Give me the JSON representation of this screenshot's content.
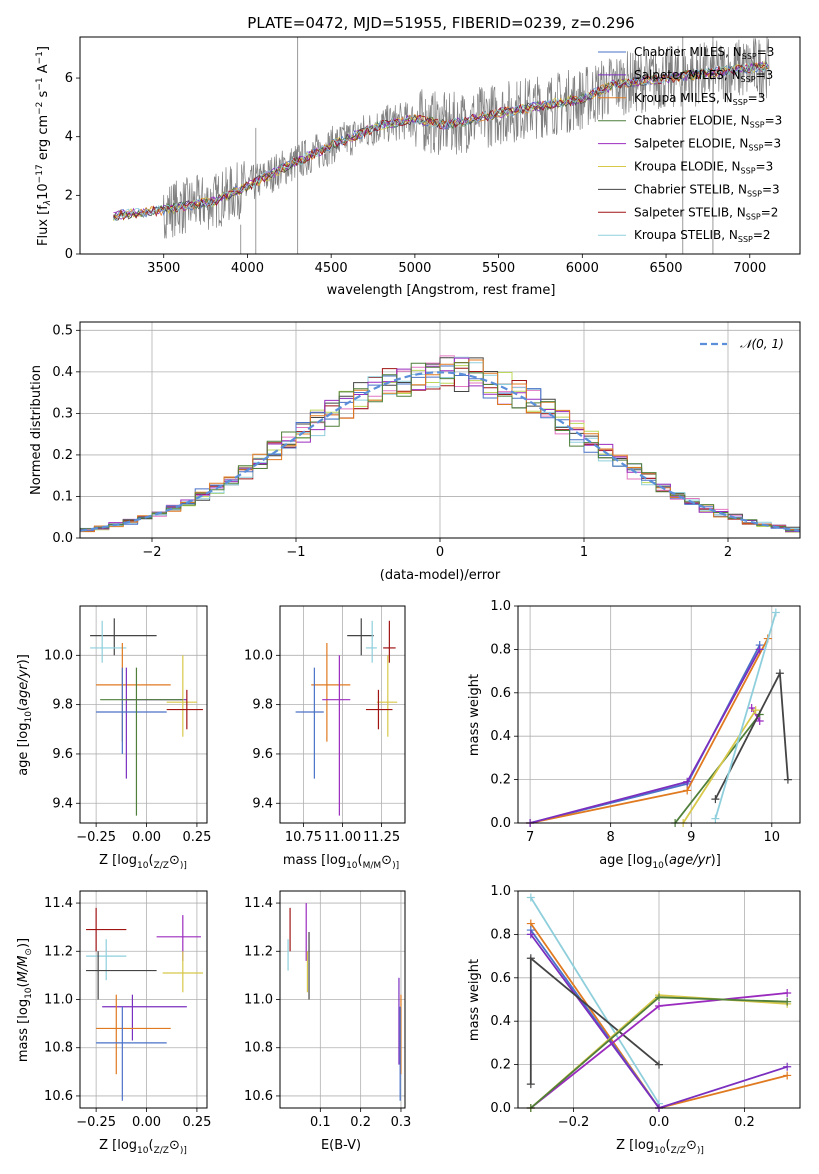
{
  "colors": [
    "#4a72c8",
    "#7b2fbf",
    "#e07a20",
    "#4f7f3a",
    "#9b2bbf",
    "#d8c84a",
    "#444444",
    "#a01414",
    "#8fcfdc"
  ],
  "chart_data": [
    {
      "type": "line",
      "title": "PLATE=0472, MJD=51955, FIBERID=0239, z=0.296",
      "xlabel": "wavelength [Angstrom, rest frame]",
      "ylabel_parts": [
        "Flux [f",
        "λ",
        "10",
        "−17",
        " erg cm",
        "−2",
        " s",
        "−1",
        " A",
        "−1",
        "]"
      ],
      "xlim": [
        3000,
        7300
      ],
      "ylim": [
        0,
        7.4
      ],
      "xticks": [
        3500,
        4000,
        4500,
        5000,
        5500,
        6000,
        6500,
        7000
      ],
      "yticks": [
        0,
        2,
        4,
        6
      ],
      "legend_placement": "right",
      "series": [
        {
          "name": "Chabrier MILES, N",
          "sub": "SSP",
          "suffix": "=3"
        },
        {
          "name": "Salpeter MILES, N",
          "sub": "SSP",
          "suffix": "=3"
        },
        {
          "name": "Kroupa MILES, N",
          "sub": "SSP",
          "suffix": "=3"
        },
        {
          "name": "Chabrier ELODIE, N",
          "sub": "SSP",
          "suffix": "=3"
        },
        {
          "name": "Salpeter ELODIE, N",
          "sub": "SSP",
          "suffix": "=3"
        },
        {
          "name": "Kroupa ELODIE, N",
          "sub": "SSP",
          "suffix": "=3"
        },
        {
          "name": "Chabrier STELIB, N",
          "sub": "SSP",
          "suffix": "=3"
        },
        {
          "name": "Salpeter STELIB, N",
          "sub": "SSP",
          "suffix": "=2"
        },
        {
          "name": "Kroupa STELIB, N",
          "sub": "SSP",
          "suffix": "=2"
        }
      ],
      "model_continuum": {
        "x": [
          3200,
          3500,
          3800,
          4000,
          4200,
          4500,
          4800,
          5000,
          5200,
          5500,
          5800,
          6000,
          6200,
          6500,
          6800,
          7100
        ],
        "y": [
          1.3,
          1.5,
          1.8,
          2.3,
          2.9,
          3.7,
          4.4,
          4.6,
          4.4,
          4.8,
          5.1,
          5.3,
          5.8,
          6.0,
          6.2,
          6.4
        ]
      }
    },
    {
      "type": "line",
      "xlabel": "(data-model)/error",
      "ylabel": "Normed distribution",
      "xlim": [
        -2.5,
        2.5
      ],
      "ylim": [
        0,
        0.52
      ],
      "xticks": [
        -2,
        -1,
        0,
        1,
        2
      ],
      "xticklabels": [
        "−2",
        "−1",
        "0",
        "1",
        "2"
      ],
      "yticks": [
        0,
        0.1,
        0.2,
        0.3,
        0.4,
        0.5
      ],
      "yticklabels": [
        "0.0",
        "0.1",
        "0.2",
        "0.3",
        "0.4",
        "0.5"
      ],
      "legend": "𝒩(0, 1)",
      "legend_placement": "top-right",
      "normal_curve": {
        "mu": 0,
        "sigma": 1
      }
    },
    {
      "type": "scatter",
      "xlabel_parts": [
        "Z [log",
        "10",
        "(",
        "Z/Z",
        "⊙",
        ")]"
      ],
      "ylabel_parts": [
        "age  [log",
        "10",
        "(",
        "age/yr",
        ")]"
      ],
      "xlim": [
        -0.33,
        0.3
      ],
      "ylim": [
        9.32,
        10.2
      ],
      "xticks": [
        -0.25,
        0,
        0.25
      ],
      "xticklabels": [
        "−0.25",
        "0.00",
        "0.25"
      ],
      "yticks": [
        9.4,
        9.6,
        9.8,
        10.0
      ],
      "yticklabels": [
        "9.4",
        "9.6",
        "9.8",
        "10.0"
      ],
      "points": [
        {
          "c": 6,
          "x": -0.16,
          "y": 10.08,
          "xe": [
            -0.28,
            0.05
          ],
          "ye": [
            10.0,
            10.15
          ]
        },
        {
          "c": 8,
          "x": -0.22,
          "y": 10.03,
          "xe": [
            -0.28,
            -0.1
          ],
          "ye": [
            9.97,
            10.14
          ]
        },
        {
          "c": 2,
          "x": -0.12,
          "y": 9.88,
          "xe": [
            -0.25,
            0.12
          ],
          "ye": [
            9.65,
            10.05
          ]
        },
        {
          "c": 1,
          "x": -0.1,
          "y": 9.82,
          "xe": [
            -0.1,
            0.2
          ],
          "ye": [
            9.5,
            9.95
          ]
        },
        {
          "c": 5,
          "x": 0.18,
          "y": 9.81,
          "xe": [
            0.1,
            0.25
          ],
          "ye": [
            9.67,
            10.0
          ]
        },
        {
          "c": 7,
          "x": 0.2,
          "y": 9.78,
          "xe": [
            0.1,
            0.28
          ],
          "ye": [
            9.7,
            9.86
          ]
        },
        {
          "c": 0,
          "x": -0.12,
          "y": 9.77,
          "xe": [
            -0.25,
            0.1
          ],
          "ye": [
            9.6,
            9.95
          ]
        },
        {
          "c": 3,
          "x": -0.05,
          "y": 9.82,
          "xe": [
            -0.23,
            0.18
          ],
          "ye": [
            9.35,
            9.95
          ]
        }
      ]
    },
    {
      "type": "scatter",
      "xlabel_parts": [
        "mass [log",
        "10",
        "(",
        "M/M",
        "⊙",
        ")]"
      ],
      "xlim": [
        10.6,
        11.4
      ],
      "ylim": [
        9.32,
        10.2
      ],
      "xticks": [
        10.75,
        11.0,
        11.25
      ],
      "xticklabels": [
        "10.75",
        "11.00",
        "11.25"
      ],
      "yticks": [
        9.4,
        9.6,
        9.8,
        10.0
      ],
      "yticklabels": [
        "9.4",
        "9.6",
        "9.8",
        "10.0"
      ],
      "points": [
        {
          "c": 6,
          "x": 11.12,
          "y": 10.08,
          "xe": [
            11.03,
            11.2
          ],
          "ye": [
            10.0,
            10.15
          ]
        },
        {
          "c": 7,
          "x": 11.3,
          "y": 10.03,
          "xe": [
            11.26,
            11.34
          ],
          "ye": [
            9.97,
            10.14
          ]
        },
        {
          "c": 8,
          "x": 11.19,
          "y": 10.03,
          "xe": [
            11.15,
            11.22
          ],
          "ye": [
            9.97,
            10.14
          ]
        },
        {
          "c": 2,
          "x": 10.9,
          "y": 9.88,
          "xe": [
            10.8,
            11.05
          ],
          "ye": [
            9.65,
            10.05
          ]
        },
        {
          "c": 4,
          "x": 10.98,
          "y": 9.82,
          "xe": [
            10.87,
            11.05
          ],
          "ye": [
            9.35,
            10.0
          ]
        },
        {
          "c": 5,
          "x": 11.29,
          "y": 9.81,
          "xe": [
            11.22,
            11.35
          ],
          "ye": [
            9.67,
            10.0
          ]
        },
        {
          "c": 7,
          "x": 11.23,
          "y": 9.78,
          "xe": [
            11.15,
            11.32
          ],
          "ye": [
            9.7,
            9.86
          ]
        },
        {
          "c": 0,
          "x": 10.82,
          "y": 9.77,
          "xe": [
            10.7,
            10.88
          ],
          "ye": [
            9.5,
            9.95
          ]
        }
      ]
    },
    {
      "type": "line",
      "xlabel_parts": [
        "age  [log",
        "10",
        "(",
        "age/yr",
        ")]"
      ],
      "ylabel": "mass weight",
      "xlim": [
        6.85,
        10.35
      ],
      "ylim": [
        0,
        1.0
      ],
      "xticks": [
        7,
        8,
        9,
        10
      ],
      "yticks": [
        0,
        0.2,
        0.4,
        0.6,
        0.8,
        1.0
      ],
      "yticklabels": [
        "0.0",
        "0.2",
        "0.4",
        "0.6",
        "0.8",
        "1.0"
      ],
      "series": [
        {
          "c": 0,
          "x": [
            7.0,
            8.95,
            9.85
          ],
          "y": [
            0.0,
            0.18,
            0.82
          ]
        },
        {
          "c": 2,
          "x": [
            7.0,
            8.95,
            9.95
          ],
          "y": [
            0.0,
            0.15,
            0.85
          ]
        },
        {
          "c": 3,
          "x": [
            8.8,
            9.85
          ],
          "y": [
            0.0,
            0.5
          ]
        },
        {
          "c": 4,
          "x": [
            9.75,
            9.85
          ],
          "y": [
            0.53,
            0.47
          ]
        },
        {
          "c": 5,
          "x": [
            8.9,
            9.8
          ],
          "y": [
            0.0,
            0.52
          ]
        },
        {
          "c": 6,
          "x": [
            9.3,
            10.1,
            10.2
          ],
          "y": [
            0.11,
            0.69,
            0.2
          ]
        },
        {
          "c": 8,
          "x": [
            9.3,
            10.05
          ],
          "y": [
            0.02,
            0.97
          ]
        },
        {
          "c": 1,
          "x": [
            7.0,
            8.95,
            9.85
          ],
          "y": [
            0.0,
            0.19,
            0.8
          ]
        }
      ]
    },
    {
      "type": "scatter",
      "xlabel_parts": [
        "Z [log",
        "10",
        "(",
        "Z/Z",
        "⊙",
        ")]"
      ],
      "ylabel_parts": [
        "mass [log",
        "10",
        "(",
        "M/M",
        "⊙",
        ")]"
      ],
      "xlim": [
        -0.33,
        0.3
      ],
      "ylim": [
        10.55,
        11.45
      ],
      "xticks": [
        -0.25,
        0,
        0.25
      ],
      "xticklabels": [
        "−0.25",
        "0.00",
        "0.25"
      ],
      "yticks": [
        10.6,
        10.8,
        11.0,
        11.2,
        11.4
      ],
      "yticklabels": [
        "10.6",
        "10.8",
        "11.0",
        "11.2",
        "11.4"
      ],
      "points": [
        {
          "c": 7,
          "x": -0.25,
          "y": 11.29,
          "xe": [
            -0.3,
            -0.1
          ],
          "ye": [
            11.2,
            11.38
          ]
        },
        {
          "c": 4,
          "x": 0.18,
          "y": 11.26,
          "xe": [
            0.05,
            0.27
          ],
          "ye": [
            11.16,
            11.35
          ]
        },
        {
          "c": 8,
          "x": -0.2,
          "y": 11.18,
          "xe": [
            -0.3,
            -0.1
          ],
          "ye": [
            11.08,
            11.25
          ]
        },
        {
          "c": 6,
          "x": -0.24,
          "y": 11.12,
          "xe": [
            -0.3,
            0.05
          ],
          "ye": [
            11.0,
            11.2
          ]
        },
        {
          "c": 5,
          "x": 0.18,
          "y": 11.11,
          "xe": [
            0.08,
            0.28
          ],
          "ye": [
            11.03,
            11.2
          ]
        },
        {
          "c": 1,
          "x": -0.07,
          "y": 10.97,
          "xe": [
            -0.22,
            0.2
          ],
          "ye": [
            10.83,
            11.02
          ]
        },
        {
          "c": 2,
          "x": -0.15,
          "y": 10.88,
          "xe": [
            -0.25,
            0.12
          ],
          "ye": [
            10.69,
            11.02
          ]
        },
        {
          "c": 0,
          "x": -0.12,
          "y": 10.82,
          "xe": [
            -0.25,
            0.1
          ],
          "ye": [
            10.58,
            10.97
          ]
        }
      ]
    },
    {
      "type": "scatter",
      "xlabel": "E(B-V)",
      "xlim": [
        0.0,
        0.31
      ],
      "ylim": [
        10.55,
        11.45
      ],
      "xticks": [
        0.1,
        0.2,
        0.3
      ],
      "xticklabels": [
        "0.1",
        "0.2",
        "0.3"
      ],
      "yticks": [
        10.6,
        10.8,
        11.0,
        11.2,
        11.4
      ],
      "yticklabels": [
        "10.6",
        "10.8",
        "11.0",
        "11.2",
        "11.4"
      ],
      "points": [
        {
          "c": 7,
          "x": 0.025,
          "y": 11.29,
          "xe": [
            0.025,
            0.025
          ],
          "ye": [
            11.2,
            11.38
          ]
        },
        {
          "c": 4,
          "x": 0.065,
          "y": 11.26,
          "xe": [
            0.065,
            0.065
          ],
          "ye": [
            11.16,
            11.4
          ]
        },
        {
          "c": 8,
          "x": 0.02,
          "y": 11.18,
          "xe": [
            0.02,
            0.02
          ],
          "ye": [
            11.12,
            11.25
          ]
        },
        {
          "c": 6,
          "x": 0.072,
          "y": 11.12,
          "xe": [
            0.072,
            0.072
          ],
          "ye": [
            11.0,
            11.28
          ]
        },
        {
          "c": 5,
          "x": 0.068,
          "y": 11.11,
          "xe": [
            0.068,
            0.068
          ],
          "ye": [
            11.03,
            11.2
          ]
        },
        {
          "c": 1,
          "x": 0.295,
          "y": 10.97,
          "xe": [
            0.295,
            0.295
          ],
          "ye": [
            10.73,
            11.09
          ]
        },
        {
          "c": 2,
          "x": 0.3,
          "y": 10.88,
          "xe": [
            0.3,
            0.3
          ],
          "ye": [
            10.69,
            11.02
          ]
        },
        {
          "c": 0,
          "x": 0.298,
          "y": 10.82,
          "xe": [
            0.298,
            0.298
          ],
          "ye": [
            10.58,
            10.97
          ]
        }
      ]
    },
    {
      "type": "line",
      "xlabel_parts": [
        "Z [log",
        "10",
        "(",
        "Z/Z",
        "⊙",
        ")]"
      ],
      "ylabel": "mass weight",
      "xlim": [
        -0.33,
        0.33
      ],
      "ylim": [
        0,
        1.0
      ],
      "xticks": [
        -0.2,
        0,
        0.2
      ],
      "xticklabels": [
        "−0.2",
        "0.0",
        "0.2"
      ],
      "yticks": [
        0,
        0.2,
        0.4,
        0.6,
        0.8,
        1.0
      ],
      "yticklabels": [
        "0.0",
        "0.2",
        "0.4",
        "0.6",
        "0.8",
        "1.0"
      ],
      "series": [
        {
          "c": 8,
          "x": [
            -0.3,
            0.0
          ],
          "y": [
            0.97,
            0.02
          ]
        },
        {
          "c": 2,
          "x": [
            -0.3,
            0.0,
            0.3
          ],
          "y": [
            0.85,
            0.0,
            0.15
          ]
        },
        {
          "c": 0,
          "x": [
            -0.3,
            0.0
          ],
          "y": [
            0.82,
            0.0
          ]
        },
        {
          "c": 1,
          "x": [
            -0.3,
            0.0,
            0.3
          ],
          "y": [
            0.8,
            0.0,
            0.19
          ]
        },
        {
          "c": 6,
          "x": [
            -0.3,
            -0.3,
            0.0
          ],
          "y": [
            0.11,
            0.69,
            0.2
          ]
        },
        {
          "c": 4,
          "x": [
            -0.3,
            0.0,
            0.3
          ],
          "y": [
            0.0,
            0.47,
            0.53
          ]
        },
        {
          "c": 5,
          "x": [
            -0.3,
            0.0,
            0.3
          ],
          "y": [
            0.0,
            0.52,
            0.48
          ]
        },
        {
          "c": 3,
          "x": [
            -0.3,
            0.0,
            0.3
          ],
          "y": [
            0.0,
            0.51,
            0.49
          ]
        }
      ]
    }
  ]
}
